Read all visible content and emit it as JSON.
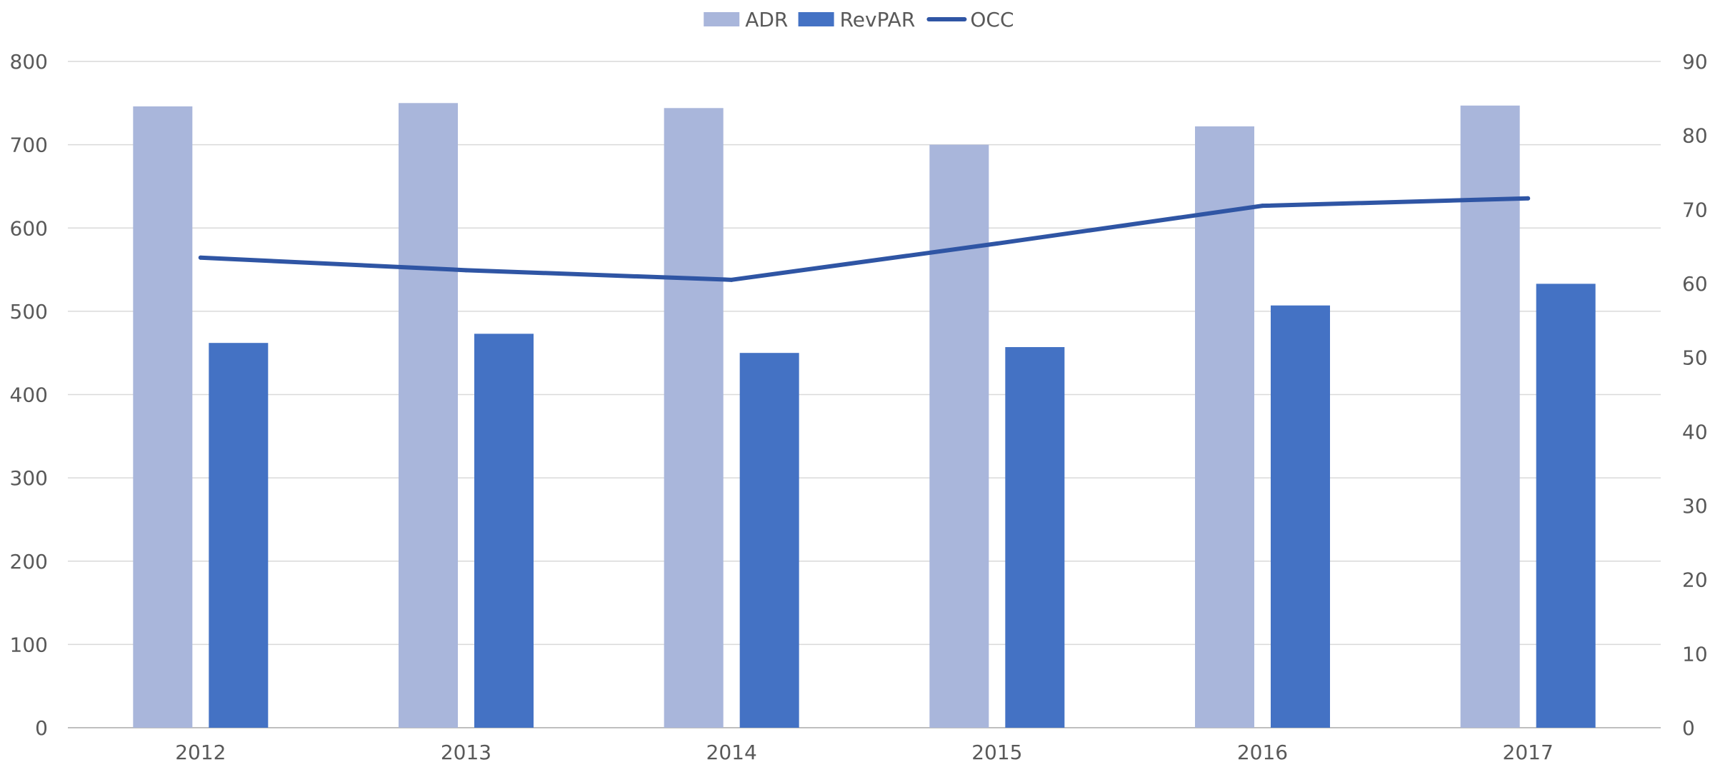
{
  "chart_data": {
    "type": "bar",
    "categories": [
      "2012",
      "2013",
      "2014",
      "2015",
      "2016",
      "2017"
    ],
    "series": [
      {
        "name": "ADR",
        "type": "bar",
        "axis": "left",
        "color": "#A9B6DB",
        "values": [
          746,
          750,
          744,
          700,
          722,
          747
        ]
      },
      {
        "name": "RevPAR",
        "type": "bar",
        "axis": "left",
        "color": "#4472C4",
        "values": [
          462,
          473,
          450,
          457,
          507,
          533
        ]
      },
      {
        "name": "OCC",
        "type": "line",
        "axis": "right",
        "color": "#2F55A4",
        "values": [
          63.5,
          61.8,
          60.5,
          65.4,
          70.5,
          71.5
        ]
      }
    ],
    "y_left": {
      "min": 0,
      "max": 800,
      "ticks": [
        "0",
        "100",
        "200",
        "300",
        "400",
        "500",
        "600",
        "700",
        "800"
      ]
    },
    "y_right": {
      "min": 0,
      "max": 90,
      "ticks": [
        "0",
        "10",
        "20",
        "30",
        "40",
        "50",
        "60",
        "70",
        "80",
        "90"
      ]
    },
    "grid": true,
    "legend": "top-center",
    "colors": {
      "grid": "#D9D9D9",
      "axis": "#BFBFBF",
      "text": "#595959"
    }
  }
}
